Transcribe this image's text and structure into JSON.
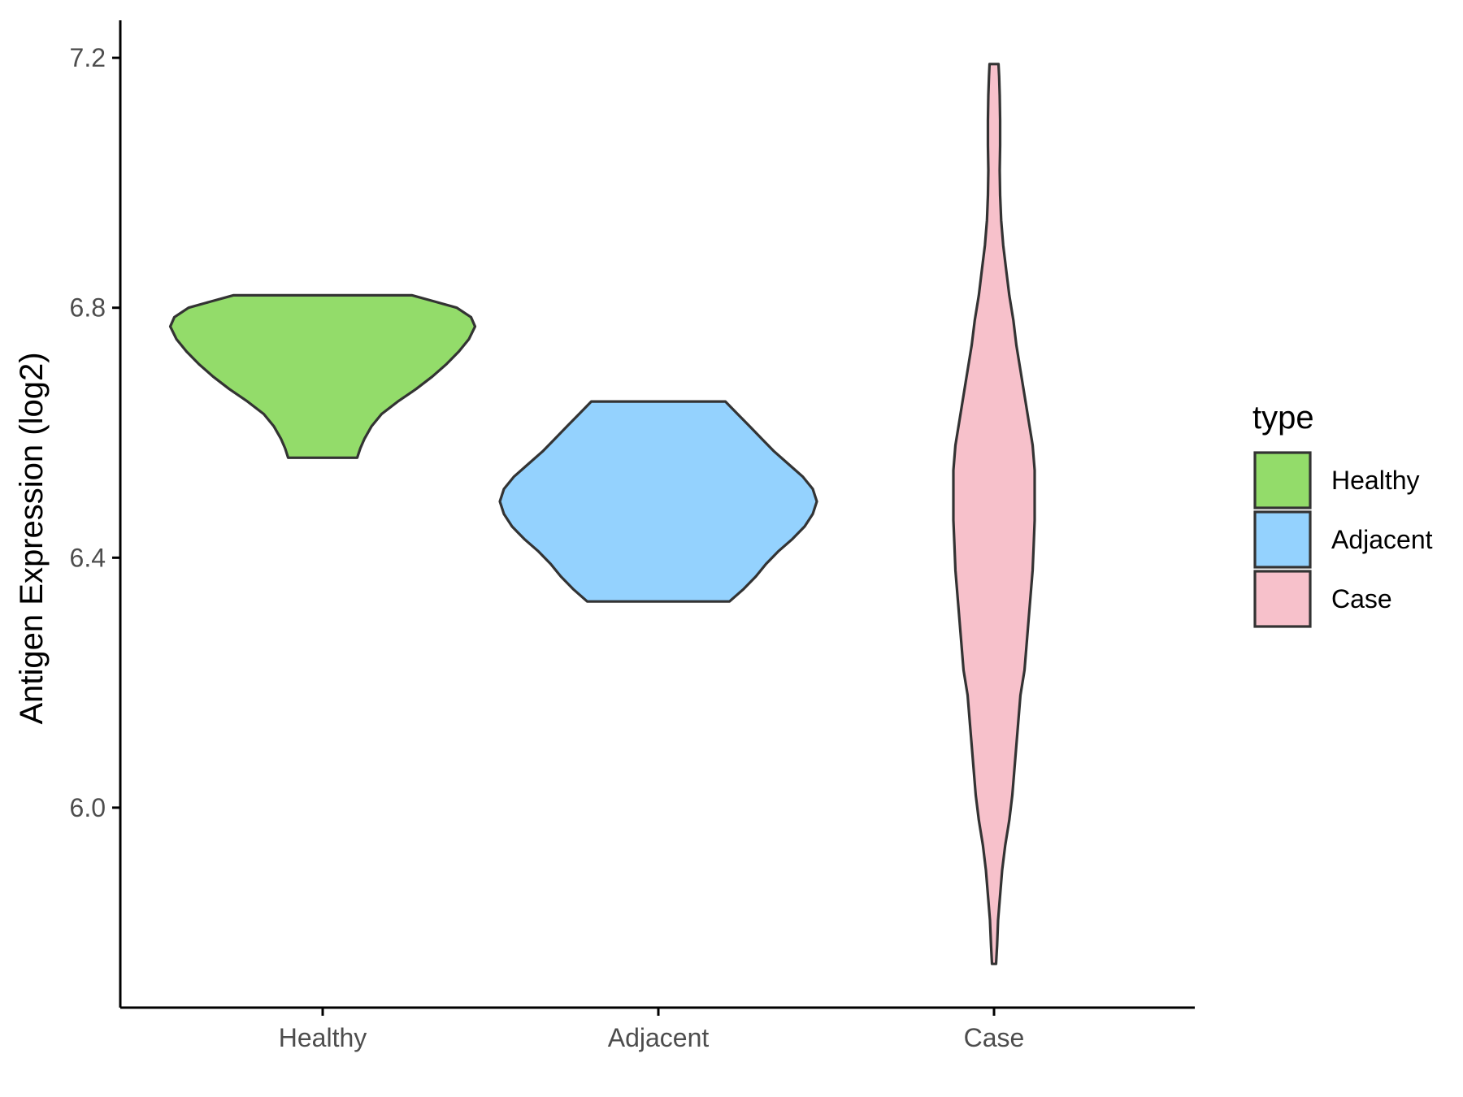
{
  "chart_data": {
    "type": "violin",
    "categories": [
      "Healthy",
      "Adjacent",
      "Case"
    ],
    "ylabel": "Antigen Expression (log2)",
    "xlabel": "",
    "ylim": [
      5.68,
      7.26
    ],
    "yticks": [
      6.0,
      6.4,
      6.8,
      7.2
    ],
    "ytick_labels": [
      "6.0",
      "6.4",
      "6.8",
      "7.2"
    ],
    "grid": false,
    "legend": {
      "title": "type",
      "position": "right",
      "entries": [
        "Healthy",
        "Adjacent",
        "Case"
      ]
    },
    "colors": {
      "Healthy": "#93dc6a",
      "Adjacent": "#94d2fe",
      "Case": "#f7c1cb",
      "outline": "#333333",
      "axis": "#000000"
    },
    "series": [
      {
        "category": "Healthy",
        "min": 6.56,
        "max": 6.82,
        "profile": [
          [
            6.56,
            0.17
          ],
          [
            6.575,
            0.185
          ],
          [
            6.59,
            0.205
          ],
          [
            6.61,
            0.24
          ],
          [
            6.63,
            0.29
          ],
          [
            6.65,
            0.37
          ],
          [
            6.67,
            0.46
          ],
          [
            6.69,
            0.54
          ],
          [
            6.71,
            0.61
          ],
          [
            6.73,
            0.67
          ],
          [
            6.75,
            0.72
          ],
          [
            6.77,
            0.75
          ],
          [
            6.785,
            0.73
          ],
          [
            6.8,
            0.66
          ],
          [
            6.81,
            0.55
          ],
          [
            6.82,
            0.44
          ]
        ]
      },
      {
        "category": "Adjacent",
        "min": 6.33,
        "max": 6.65,
        "profile": [
          [
            6.33,
            0.35
          ],
          [
            6.35,
            0.42
          ],
          [
            6.37,
            0.48
          ],
          [
            6.39,
            0.53
          ],
          [
            6.41,
            0.59
          ],
          [
            6.43,
            0.66
          ],
          [
            6.45,
            0.72
          ],
          [
            6.47,
            0.76
          ],
          [
            6.49,
            0.78
          ],
          [
            6.51,
            0.76
          ],
          [
            6.53,
            0.71
          ],
          [
            6.55,
            0.64
          ],
          [
            6.57,
            0.57
          ],
          [
            6.59,
            0.51
          ],
          [
            6.61,
            0.45
          ],
          [
            6.63,
            0.39
          ],
          [
            6.65,
            0.33
          ]
        ]
      },
      {
        "category": "Case",
        "min": 5.75,
        "max": 7.19,
        "profile": [
          [
            5.75,
            0.01
          ],
          [
            5.78,
            0.015
          ],
          [
            5.82,
            0.02
          ],
          [
            5.86,
            0.03
          ],
          [
            5.9,
            0.04
          ],
          [
            5.94,
            0.055
          ],
          [
            5.98,
            0.075
          ],
          [
            6.02,
            0.09
          ],
          [
            6.06,
            0.1
          ],
          [
            6.1,
            0.11
          ],
          [
            6.14,
            0.12
          ],
          [
            6.18,
            0.13
          ],
          [
            6.22,
            0.15
          ],
          [
            6.26,
            0.16
          ],
          [
            6.3,
            0.17
          ],
          [
            6.34,
            0.18
          ],
          [
            6.38,
            0.19
          ],
          [
            6.42,
            0.195
          ],
          [
            6.46,
            0.2
          ],
          [
            6.5,
            0.2
          ],
          [
            6.54,
            0.2
          ],
          [
            6.58,
            0.19
          ],
          [
            6.62,
            0.17
          ],
          [
            6.66,
            0.15
          ],
          [
            6.7,
            0.13
          ],
          [
            6.74,
            0.11
          ],
          [
            6.78,
            0.095
          ],
          [
            6.82,
            0.075
          ],
          [
            6.86,
            0.06
          ],
          [
            6.9,
            0.045
          ],
          [
            6.94,
            0.035
          ],
          [
            6.98,
            0.03
          ],
          [
            7.02,
            0.028
          ],
          [
            7.06,
            0.03
          ],
          [
            7.1,
            0.03
          ],
          [
            7.14,
            0.028
          ],
          [
            7.17,
            0.025
          ],
          [
            7.19,
            0.022
          ]
        ]
      }
    ]
  }
}
